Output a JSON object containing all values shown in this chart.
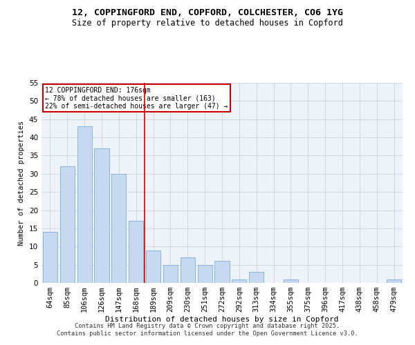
{
  "title_line1": "12, COPPINGFORD END, COPFORD, COLCHESTER, CO6 1YG",
  "title_line2": "Size of property relative to detached houses in Copford",
  "xlabel": "Distribution of detached houses by size in Copford",
  "ylabel": "Number of detached properties",
  "bar_labels": [
    "64sqm",
    "85sqm",
    "106sqm",
    "126sqm",
    "147sqm",
    "168sqm",
    "189sqm",
    "209sqm",
    "230sqm",
    "251sqm",
    "272sqm",
    "292sqm",
    "313sqm",
    "334sqm",
    "355sqm",
    "375sqm",
    "396sqm",
    "417sqm",
    "438sqm",
    "458sqm",
    "479sqm"
  ],
  "bar_values": [
    14,
    32,
    43,
    37,
    30,
    17,
    9,
    5,
    7,
    5,
    6,
    1,
    3,
    0,
    1,
    0,
    0,
    0,
    0,
    0,
    1
  ],
  "bar_color": "#c6d9f0",
  "bar_edgecolor": "#7bafd4",
  "grid_color": "#c8d4e4",
  "bg_color": "#eef2f9",
  "vline_x": 5.5,
  "vline_color": "#cc0000",
  "annotation_text": "12 COPPINGFORD END: 176sqm\n← 78% of detached houses are smaller (163)\n22% of semi-detached houses are larger (47) →",
  "annotation_box_color": "#cc0000",
  "ylim": [
    0,
    55
  ],
  "yticks": [
    0,
    5,
    10,
    15,
    20,
    25,
    30,
    35,
    40,
    45,
    50,
    55
  ],
  "footer_line1": "Contains HM Land Registry data © Crown copyright and database right 2025.",
  "footer_line2": "Contains public sector information licensed under the Open Government Licence v3.0."
}
